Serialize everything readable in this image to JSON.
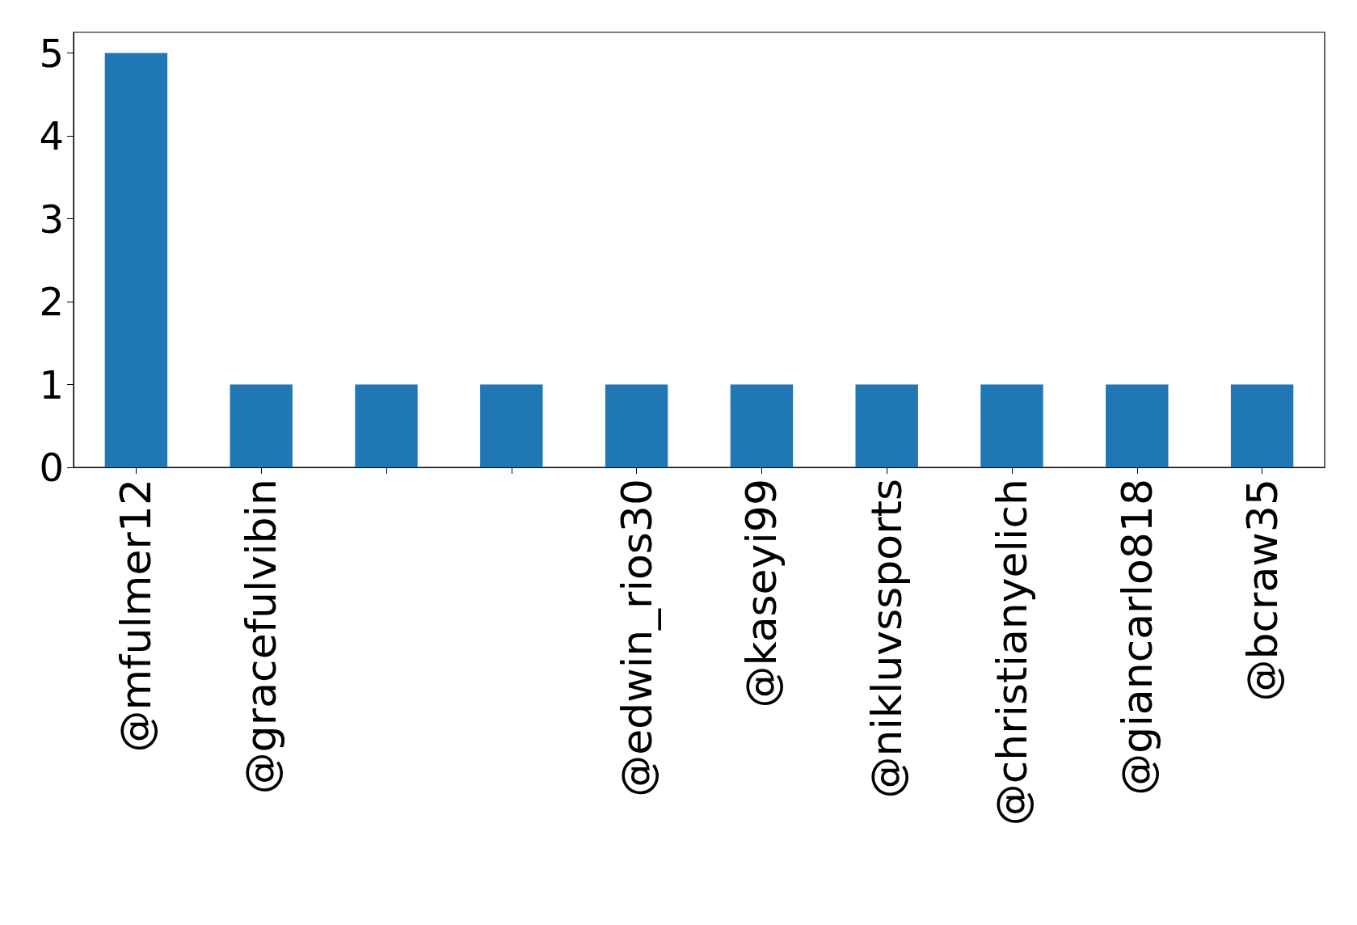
{
  "chart_data": {
    "type": "bar",
    "categories": [
      "@mfulmer12",
      "@gracefulvibin",
      null,
      null,
      "@edwin_rios30",
      "@kaseyi99",
      "@nikluvssports",
      "@christianyelich",
      "@giancarlo818",
      "@bcraw35"
    ],
    "values": [
      5,
      1,
      1,
      1,
      1,
      1,
      1,
      1,
      1,
      1
    ],
    "color": "#1f77b4",
    "ylim": [
      0,
      5.25
    ],
    "yticks": [
      0,
      1,
      2,
      3,
      4,
      5
    ],
    "grid": false
  }
}
